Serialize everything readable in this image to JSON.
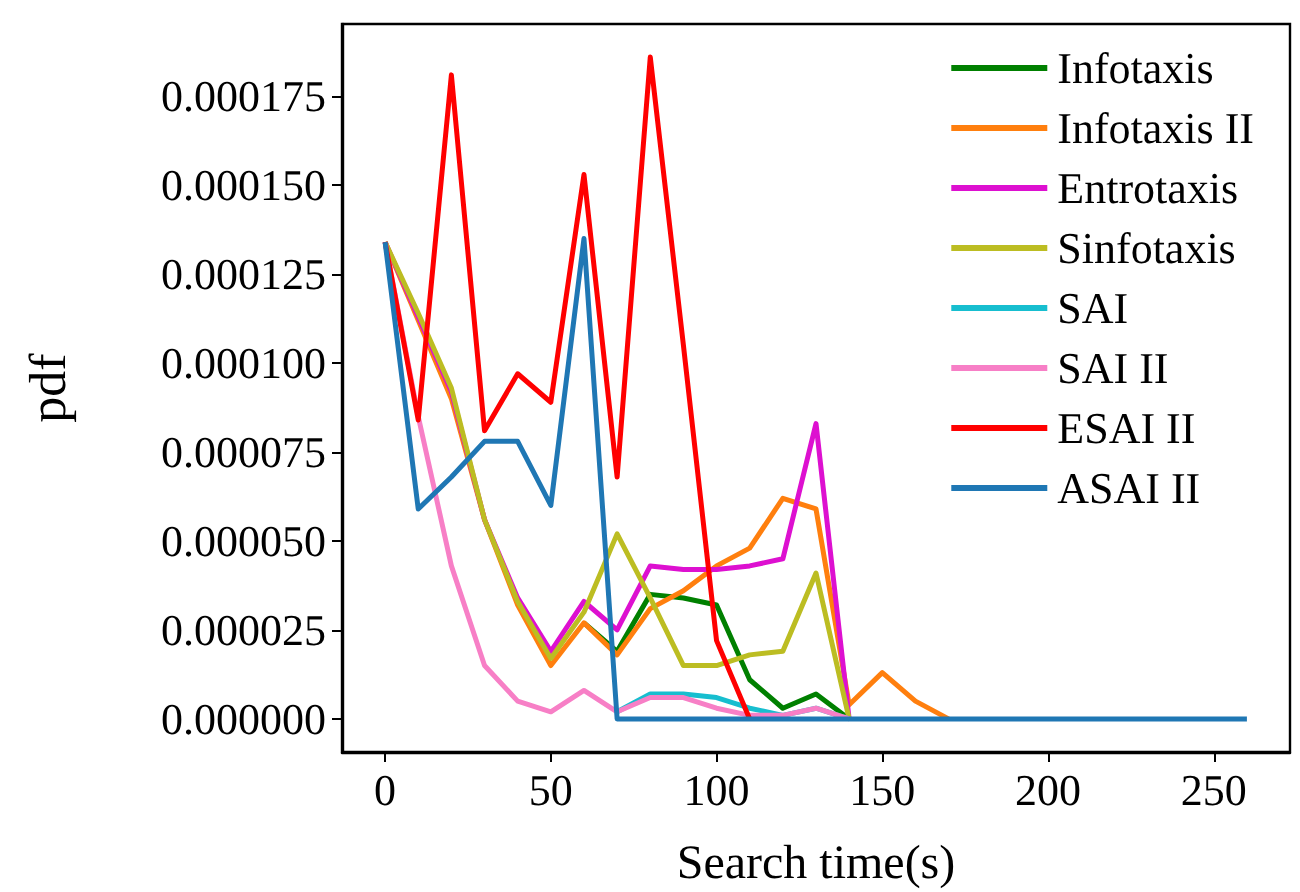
{
  "chart_data": {
    "type": "line",
    "xlabel": "Search time(s)",
    "ylabel": "pdf",
    "x": [
      0,
      10,
      20,
      30,
      40,
      50,
      60,
      70,
      80,
      90,
      100,
      110,
      120,
      130,
      140,
      150,
      160,
      170,
      180,
      190,
      200,
      210,
      220,
      230,
      240,
      250,
      260
    ],
    "xlim": [
      -13,
      273
    ],
    "xticks": [
      0,
      50,
      100,
      150,
      200,
      250
    ],
    "ylim": [
      -9.3e-06,
      0.0001953
    ],
    "yticks": [
      {
        "value": 0,
        "label": "0.000000"
      },
      {
        "value": 2.5e-05,
        "label": "0.000025"
      },
      {
        "value": 5e-05,
        "label": "0.000050"
      },
      {
        "value": 7.5e-05,
        "label": "0.000075"
      },
      {
        "value": 0.0001,
        "label": "0.000100"
      },
      {
        "value": 0.000125,
        "label": "0.000125"
      },
      {
        "value": 0.00015,
        "label": "0.000150"
      },
      {
        "value": 0.000175,
        "label": "0.000175"
      }
    ],
    "grid": false,
    "legend": "top right",
    "marker": "none",
    "line_style": "solid",
    "series": [
      {
        "name": "Infotaxis",
        "color": "#008000",
        "values": [
          null,
          null,
          null,
          null,
          null,
          null,
          2.7e-05,
          1.9e-05,
          3.5e-05,
          3.4e-05,
          3.2e-05,
          1.1e-05,
          3e-06,
          7e-06,
          0,
          null,
          null,
          null,
          null,
          null,
          null,
          null,
          null,
          null,
          null,
          null,
          null
        ]
      },
      {
        "name": "Infotaxis II",
        "color": "#ff7f0e",
        "values": [
          0.000134,
          0.000112,
          9e-05,
          5.6e-05,
          3.2e-05,
          1.5e-05,
          2.7e-05,
          1.8e-05,
          3.1e-05,
          3.6e-05,
          4.3e-05,
          4.8e-05,
          6.2e-05,
          5.9e-05,
          4e-06,
          1.3e-05,
          5e-06,
          0,
          null,
          null,
          null,
          null,
          null,
          null,
          null,
          null,
          null
        ]
      },
      {
        "name": "Entrotaxis",
        "color": "#dd10d0",
        "values": [
          0.000134,
          0.000113,
          9.2e-05,
          5.6e-05,
          3.4e-05,
          1.9e-05,
          3.3e-05,
          2.5e-05,
          4.3e-05,
          4.2e-05,
          4.2e-05,
          4.3e-05,
          4.5e-05,
          8.3e-05,
          0,
          null,
          null,
          null,
          null,
          null,
          null,
          null,
          null,
          null,
          null,
          null,
          null
        ]
      },
      {
        "name": "Sinfotaxis",
        "color": "#bcbd22",
        "values": [
          0.000134,
          0.000114,
          9.3e-05,
          5.6e-05,
          3.3e-05,
          1.7e-05,
          3e-05,
          5.2e-05,
          3.4e-05,
          1.5e-05,
          1.5e-05,
          1.8e-05,
          1.9e-05,
          4.1e-05,
          0,
          null,
          null,
          null,
          null,
          null,
          null,
          null,
          null,
          null,
          null,
          null,
          null
        ]
      },
      {
        "name": "SAI",
        "color": "#17becf",
        "values": [
          null,
          null,
          null,
          null,
          null,
          null,
          null,
          2e-06,
          7e-06,
          7e-06,
          6e-06,
          3e-06,
          1e-06,
          3e-06,
          0,
          null,
          null,
          null,
          null,
          null,
          null,
          null,
          null,
          null,
          null,
          null,
          null
        ]
      },
      {
        "name": "SAI II",
        "color": "#f77fc6",
        "values": [
          0.000134,
          8.5e-05,
          4.3e-05,
          1.5e-05,
          5e-06,
          2e-06,
          8e-06,
          2e-06,
          6e-06,
          6e-06,
          3e-06,
          1e-06,
          1e-06,
          3e-06,
          0,
          null,
          null,
          null,
          null,
          null,
          null,
          null,
          null,
          null,
          null,
          null,
          null
        ]
      },
      {
        "name": "ESAI II",
        "color": "#ff0000",
        "values": [
          0.000134,
          8.4e-05,
          0.000181,
          8.1e-05,
          9.7e-05,
          8.9e-05,
          0.000153,
          6.8e-05,
          0.000186,
          0.000105,
          2.2e-05,
          0,
          null,
          null,
          null,
          null,
          null,
          null,
          null,
          null,
          null,
          null,
          null,
          null,
          null,
          null,
          null
        ]
      },
      {
        "name": "ASAI II",
        "color": "#1f77b4",
        "values": [
          0.000134,
          5.9e-05,
          6.8e-05,
          7.8e-05,
          7.8e-05,
          6e-05,
          0.000135,
          0,
          0,
          0,
          0,
          0,
          0,
          0,
          0,
          0,
          0,
          0,
          0,
          0,
          0,
          0,
          0,
          0,
          0,
          0,
          0
        ]
      }
    ]
  }
}
